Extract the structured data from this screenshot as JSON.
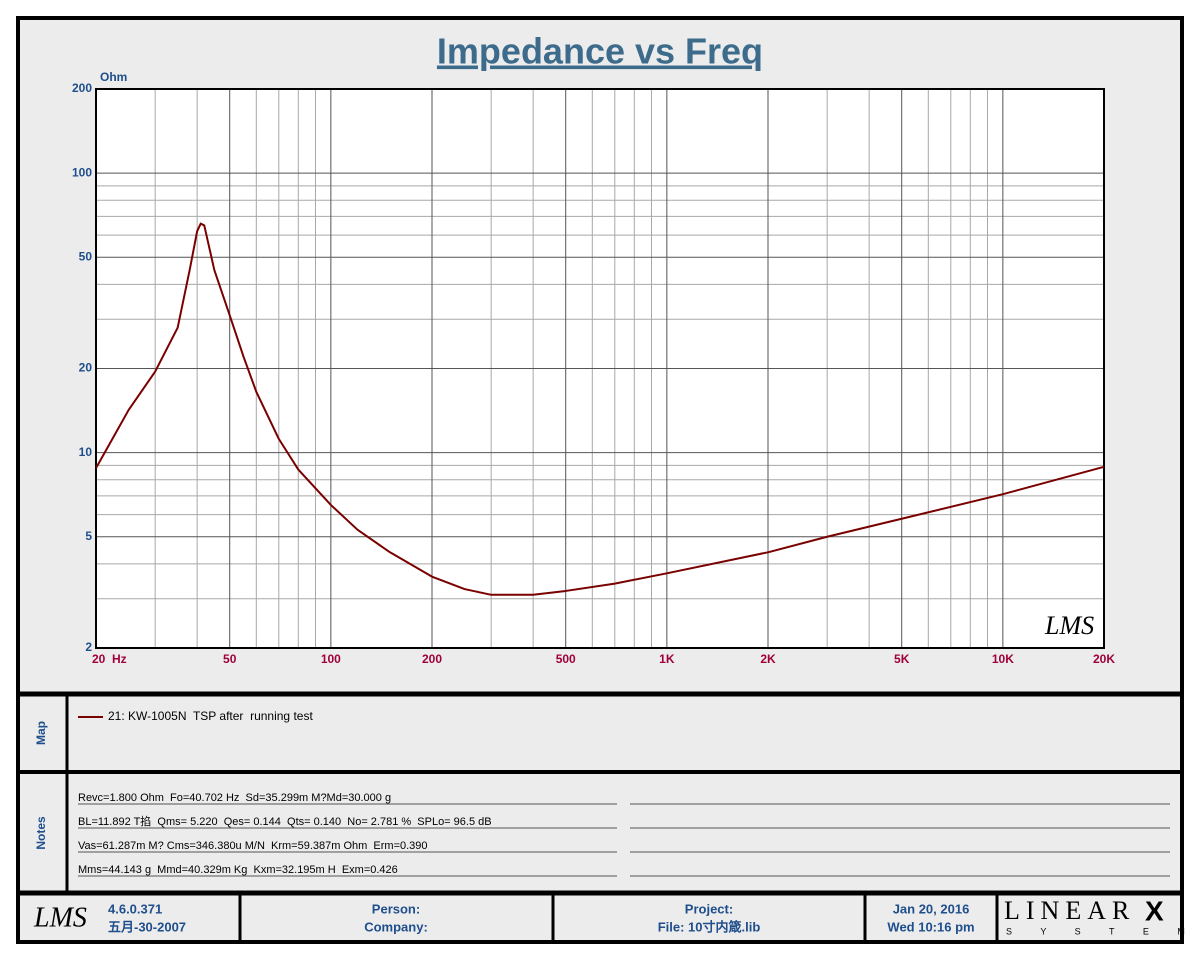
{
  "chart_data": {
    "type": "line",
    "title": "Impedance vs Freq",
    "y_unit": "Ohm",
    "x_log": true,
    "y_log": true,
    "grid": true,
    "xlim": [
      20,
      20000
    ],
    "ylim": [
      2,
      200
    ],
    "xticks": [
      {
        "value": 20,
        "label": "20  Hz"
      },
      50,
      100,
      200,
      500,
      {
        "value": 1000,
        "label": "1K"
      },
      {
        "value": 2000,
        "label": "2K"
      },
      {
        "value": 5000,
        "label": "5K"
      },
      {
        "value": 10000,
        "label": "10K"
      },
      {
        "value": 20000,
        "label": "20K"
      }
    ],
    "yticks": [
      2,
      5,
      10,
      20,
      50,
      100,
      200
    ],
    "x": [
      20,
      25,
      30,
      35,
      38,
      40,
      41,
      42,
      45,
      50,
      55,
      60,
      70,
      80,
      100,
      120,
      150,
      200,
      250,
      300,
      400,
      500,
      700,
      1000,
      2000,
      3000,
      5000,
      10000,
      20000
    ],
    "series": [
      {
        "name": "21: KW-1005N  TSP after  running test",
        "color": "#7a0000",
        "values": [
          8.8,
          14.2,
          19.5,
          28,
          45,
          62,
          66,
          65,
          45,
          31,
          22,
          16.5,
          11.2,
          8.7,
          6.5,
          5.3,
          4.4,
          3.6,
          3.25,
          3.1,
          3.1,
          3.2,
          3.4,
          3.7,
          4.4,
          5.0,
          5.8,
          7.1,
          8.9
        ]
      }
    ],
    "watermark": "LMS"
  },
  "map_panel": {
    "label": "Map"
  },
  "notes": {
    "label": "Notes",
    "lines": [
      "Revc=1.800 Ohm  Fo=40.702 Hz  Sd=35.299m M?Md=30.000 g",
      "BL=11.892 T掐  Qms= 5.220  Qes= 0.144  Qts= 0.140  No= 2.781 %  SPLo= 96.5 dB",
      "Vas=61.287m M? Cms=346.380u M/N  Krm=59.387m Ohm  Erm=0.390",
      "Mms=44.143 g  Mmd=40.329m Kg  Kxm=32.195m H  Exm=0.426"
    ]
  },
  "footer": {
    "logo": "LMS",
    "version": "4.6.0.371",
    "build_date": "五月-30-2007",
    "person": "Person:",
    "company": "Company:",
    "project": "Project:",
    "file": "File: 10寸内箴.lib",
    "date": "Jan 20, 2016",
    "time": "Wed 10:16 pm",
    "brand": "LINEAR",
    "brand_mark": "X",
    "brand_sub": "S Y S T E M S"
  }
}
